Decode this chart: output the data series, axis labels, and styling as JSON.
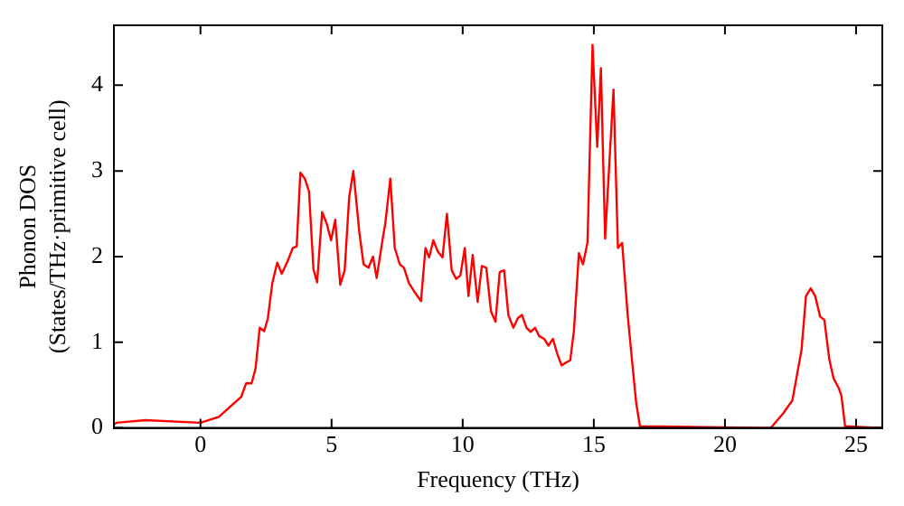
{
  "chart_data": {
    "type": "line",
    "xlabel": "Frequency (THz)",
    "ylabel": "Phonon DOS\n(States/THz·primitive cell)",
    "x": [
      -3.3,
      -3.2,
      -2.1,
      0,
      0.7,
      1.55,
      1.74,
      1.95,
      2.1,
      2.26,
      2.43,
      2.57,
      2.74,
      2.93,
      3.1,
      3.33,
      3.52,
      3.67,
      3.81,
      3.98,
      4.14,
      4.31,
      4.45,
      4.64,
      4.81,
      4.98,
      5.14,
      5.33,
      5.5,
      5.67,
      5.83,
      6.06,
      6.22,
      6.41,
      6.58,
      6.72,
      6.93,
      7.05,
      7.24,
      7.41,
      7.6,
      7.76,
      7.95,
      8.18,
      8.41,
      8.58,
      8.72,
      8.88,
      9.05,
      9.23,
      9.4,
      9.58,
      9.75,
      9.91,
      10.08,
      10.22,
      10.38,
      10.57,
      10.73,
      10.9,
      11.08,
      11.25,
      11.41,
      11.58,
      11.74,
      11.93,
      12.1,
      12.26,
      12.43,
      12.59,
      12.76,
      12.92,
      13.11,
      13.27,
      13.44,
      13.6,
      13.77,
      13.93,
      14.1,
      14.24,
      14.43,
      14.59,
      14.76,
      14.95,
      15.13,
      15.27,
      15.43,
      15.75,
      15.92,
      16.08,
      16.29,
      16.5,
      16.62,
      16.76,
      21.75,
      22.22,
      22.57,
      22.92,
      23.09,
      23.27,
      23.44,
      23.63,
      23.79,
      23.98,
      24.14,
      24.33,
      24.44,
      24.58,
      26
    ],
    "series": [
      {
        "color": "#ff0000",
        "values": [
          0.04,
          0.06,
          0.09,
          0.06,
          0.13,
          0.36,
          0.52,
          0.52,
          0.69,
          1.17,
          1.13,
          1.28,
          1.69,
          1.93,
          1.8,
          1.95,
          2.1,
          2.12,
          2.98,
          2.91,
          2.76,
          1.85,
          1.7,
          2.52,
          2.39,
          2.19,
          2.43,
          1.67,
          1.84,
          2.69,
          3.0,
          2.28,
          1.91,
          1.87,
          2.0,
          1.75,
          2.17,
          2.39,
          2.91,
          2.1,
          1.91,
          1.87,
          1.69,
          1.58,
          1.48,
          2.1,
          1.99,
          2.19,
          2.06,
          1.99,
          2.5,
          1.84,
          1.74,
          1.78,
          2.1,
          1.54,
          2.02,
          1.47,
          1.89,
          1.87,
          1.36,
          1.24,
          1.82,
          1.84,
          1.32,
          1.17,
          1.28,
          1.32,
          1.17,
          1.12,
          1.17,
          1.07,
          1.04,
          0.96,
          1.04,
          0.87,
          0.73,
          0.76,
          0.79,
          1.13,
          2.04,
          1.91,
          2.17,
          4.47,
          3.28,
          4.2,
          2.21,
          3.95,
          2.1,
          2.16,
          1.32,
          0.65,
          0.28,
          0.02,
          0,
          0.17,
          0.32,
          0.91,
          1.54,
          1.63,
          1.54,
          1.3,
          1.26,
          0.8,
          0.58,
          0.47,
          0.38,
          0.02,
          0
        ]
      }
    ],
    "xlim": [
      -3.3,
      26
    ],
    "xticks": [
      0,
      5,
      10,
      15,
      20,
      25
    ],
    "ylim": [
      0,
      4.7
    ],
    "yticks": [
      0,
      1,
      2,
      3,
      4
    ],
    "grid": false,
    "legend": false,
    "marker": "none",
    "line_style": "solid"
  }
}
